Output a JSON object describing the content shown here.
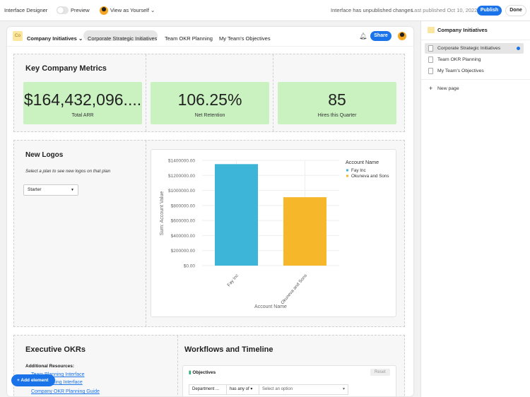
{
  "topbar": {
    "title": "Interface Designer",
    "preview": "Preview",
    "view_as": "View as Yourself",
    "status": "Interface has unpublished changes",
    "last_published": "Last published Oct 10, 2022",
    "publish": "Publish",
    "done": "Done"
  },
  "header": {
    "badge": "Co",
    "app": "Company Initiatives",
    "tabs": [
      "Corporate Strategic Initiatives",
      "Team OKR Planning",
      "My Team's Objectives"
    ],
    "share": "Share"
  },
  "metrics": {
    "title": "Key Company Metrics",
    "items": [
      {
        "value": "$164,432,096....",
        "label": "Total ARR"
      },
      {
        "value": "106.25%",
        "label": "Net Retention"
      },
      {
        "value": "85",
        "label": "Hires this Quarter"
      }
    ]
  },
  "logos": {
    "title": "New Logos",
    "hint": "Select a plan to see new logos on that plan",
    "select": "Starter"
  },
  "chart_data": {
    "type": "bar",
    "categories": [
      "Fay Inc",
      "Okuneva and Sons"
    ],
    "values": [
      1350000,
      910000
    ],
    "colors": [
      "#3db5d8",
      "#f7b72b"
    ],
    "xlabel": "Account Name",
    "ylabel": "Sum: Account Value",
    "legend_title": "Account Name",
    "legend_position": "top-right",
    "ylim": [
      0,
      1400000
    ],
    "yticks": [
      "$0.00",
      "$200000.00",
      "$400000.00",
      "$600000.00",
      "$800000.00",
      "$1000000.00",
      "$1200000.00",
      "$1400000.00"
    ]
  },
  "okrs": {
    "title": "Executive OKRs",
    "resources_label": "Additional Resources:",
    "links": [
      "Team Planning Interface",
      "OKR Tracking Interface",
      "Company OKR Planning Guide"
    ]
  },
  "workflows": {
    "title": "Workflows and Timeline",
    "table_title": "Objectives",
    "reset": "Reset",
    "filter_field": "Department ...",
    "filter_op": "has any of",
    "filter_value": "Select an option"
  },
  "add_element": "Add element",
  "sidebar": {
    "title": "Company Initiatives",
    "pages": [
      "Corporate Strategic Initiatives",
      "Team OKR Planning",
      "My Team's Objectives"
    ],
    "new_page": "New page"
  }
}
